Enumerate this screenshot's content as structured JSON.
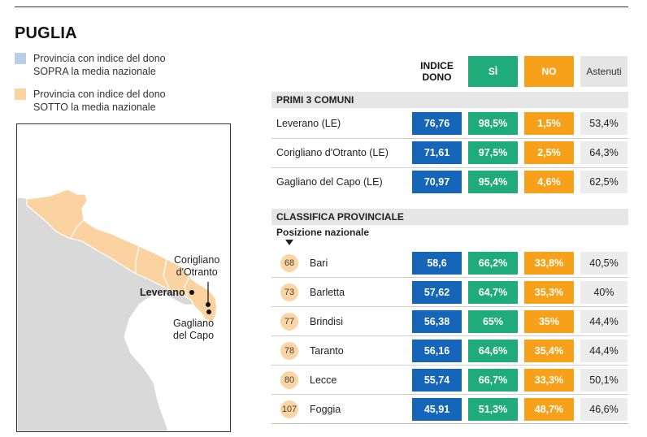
{
  "title": "PUGLIA",
  "legend": [
    {
      "text": "Provincia con indice del dono\nSOPRA la media nazionale",
      "color": "#b9cfe4"
    },
    {
      "text": "Provincia con indice del dono\nSOTTO la media nazionale",
      "color": "#fbd3a0"
    }
  ],
  "map": {
    "labels": {
      "corigliano": "Corigliano\nd'Otranto",
      "leverano": "Leverano",
      "gagliano": "Gagliano\ndel Capo"
    }
  },
  "table": {
    "headers": {
      "indice": "INDICE\nDONO",
      "si": "SÌ",
      "no": "NO",
      "astenuti": "Astenuti"
    },
    "section1": "PRIMI 3 COMUNI",
    "comuni": [
      {
        "name": "Leverano (LE)",
        "indice": "76,76",
        "si": "98,5%",
        "no": "1,5%",
        "astenuti": "53,4%"
      },
      {
        "name": "Corigliano d'Otranto (LE)",
        "indice": "71,61",
        "si": "97,5%",
        "no": "2,5%",
        "astenuti": "64,3%"
      },
      {
        "name": "Gagliano del Capo (LE)",
        "indice": "70,97",
        "si": "95,4%",
        "no": "4,6%",
        "astenuti": "62,5%"
      }
    ],
    "section2": "CLASSIFICA PROVINCIALE",
    "sub_label": "Posizione nazionale",
    "province": [
      {
        "rank": "68",
        "name": "Bari",
        "indice": "58,6",
        "si": "66,2%",
        "no": "33,8%",
        "astenuti": "40,5%"
      },
      {
        "rank": "73",
        "name": "Barletta",
        "indice": "57,62",
        "si": "64,7%",
        "no": "35,3%",
        "astenuti": "40%"
      },
      {
        "rank": "77",
        "name": "Brindisi",
        "indice": "56,38",
        "si": "65%",
        "no": "35%",
        "astenuti": "44,4%"
      },
      {
        "rank": "78",
        "name": "Taranto",
        "indice": "56,16",
        "si": "64,6%",
        "no": "35,4%",
        "astenuti": "44,4%"
      },
      {
        "rank": "80",
        "name": "Lecce",
        "indice": "55,74",
        "si": "66,7%",
        "no": "33,3%",
        "astenuti": "50,1%"
      },
      {
        "rank": "107",
        "name": "Foggia",
        "indice": "45,91",
        "si": "51,3%",
        "no": "48,7%",
        "astenuti": "46,6%"
      }
    ]
  }
}
